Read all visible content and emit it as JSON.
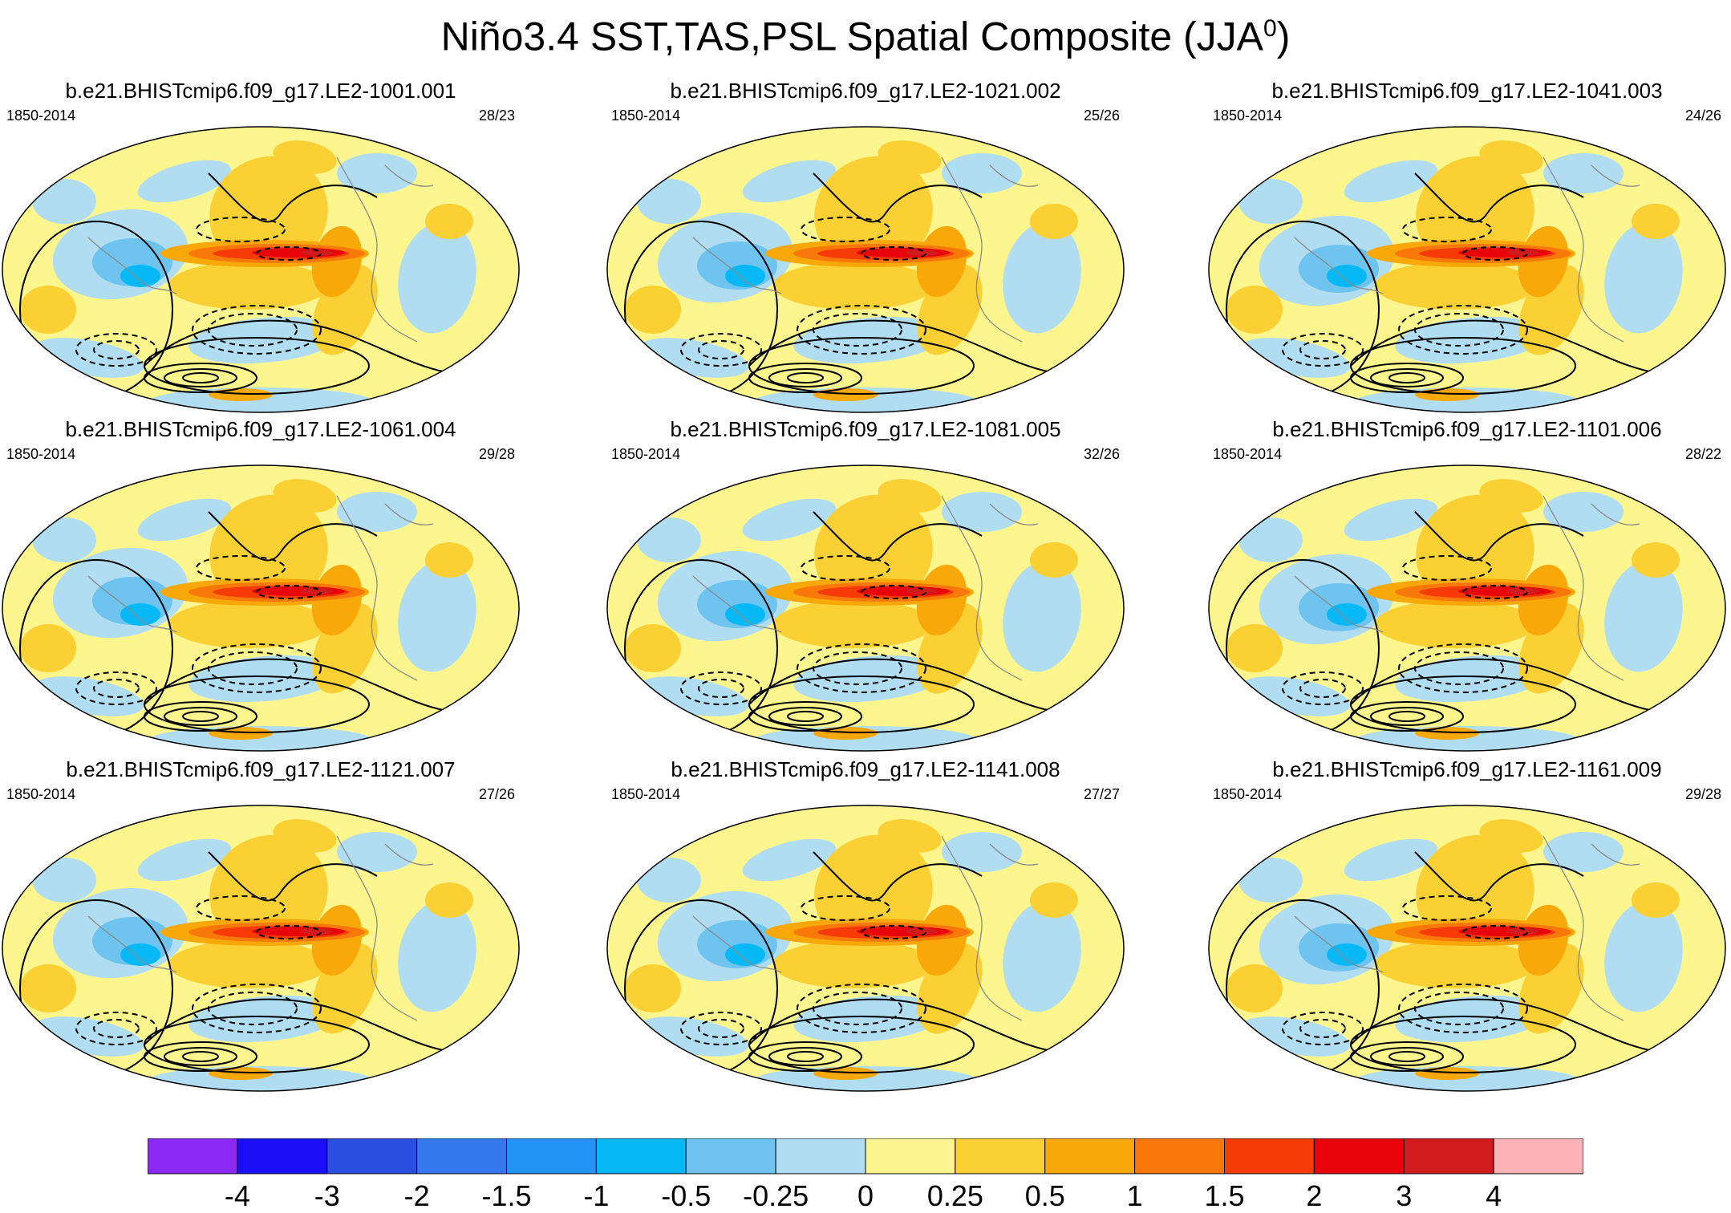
{
  "title": {
    "main": "Niño3.4 SST,TAS,PSL Spatial Composite (JJA",
    "sup": "0",
    "close": ")"
  },
  "panels": [
    {
      "name": "b.e21.BHISTcmip6.f09_g17.LE2-1001.001",
      "years": "1850-2014",
      "ratio": "28/23"
    },
    {
      "name": "b.e21.BHISTcmip6.f09_g17.LE2-1021.002",
      "years": "1850-2014",
      "ratio": "25/26"
    },
    {
      "name": "b.e21.BHISTcmip6.f09_g17.LE2-1041.003",
      "years": "1850-2014",
      "ratio": "24/26"
    },
    {
      "name": "b.e21.BHISTcmip6.f09_g17.LE2-1061.004",
      "years": "1850-2014",
      "ratio": "29/28"
    },
    {
      "name": "b.e21.BHISTcmip6.f09_g17.LE2-1081.005",
      "years": "1850-2014",
      "ratio": "32/26"
    },
    {
      "name": "b.e21.BHISTcmip6.f09_g17.LE2-1101.006",
      "years": "1850-2014",
      "ratio": "28/22"
    },
    {
      "name": "b.e21.BHISTcmip6.f09_g17.LE2-1121.007",
      "years": "1850-2014",
      "ratio": "27/26"
    },
    {
      "name": "b.e21.BHISTcmip6.f09_g17.LE2-1141.008",
      "years": "1850-2014",
      "ratio": "27/27"
    },
    {
      "name": "b.e21.BHISTcmip6.f09_g17.LE2-1161.009",
      "years": "1850-2014",
      "ratio": "29/28"
    }
  ],
  "chart_data": {
    "type": "heatmap",
    "title": "Niño3.4 SST,TAS,PSL Spatial Composite (JJA0)",
    "projection": "global map (Robinson-like ellipse)",
    "fields": [
      "SST/TAS (filled contours)",
      "PSL (line contours, dashed negative)"
    ],
    "colorbar": {
      "levels": [
        "-4",
        "-3",
        "-2",
        "-1.5",
        "-1",
        "-0.5",
        "-0.25",
        "0",
        "0.25",
        "0.5",
        "1",
        "1.5",
        "2",
        "3",
        "4"
      ],
      "colors": [
        "#8c29f5",
        "#1c0ff5",
        "#2a4fe0",
        "#3679ee",
        "#2394f5",
        "#06b8f5",
        "#6ec4ef",
        "#b1ddf3",
        "#fdf68f",
        "#fbd034",
        "#f9a80a",
        "#f8790a",
        "#f63b06",
        "#e8030a",
        "#d11b1f",
        "#fdb3b6"
      ]
    }
  }
}
